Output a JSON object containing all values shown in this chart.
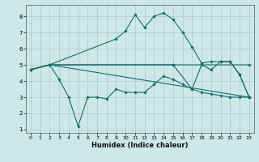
{
  "xlabel": "Humidex (Indice chaleur)",
  "bg_color": "#cce8e8",
  "grid_color": "#aaaaaa",
  "line_color": "#1a6b6b",
  "xlim": [
    -0.5,
    23.5
  ],
  "ylim": [
    0.8,
    8.7
  ],
  "xticks": [
    0,
    1,
    2,
    3,
    4,
    5,
    6,
    7,
    8,
    9,
    10,
    11,
    12,
    13,
    14,
    15,
    16,
    17,
    18,
    19,
    20,
    21,
    22,
    23
  ],
  "yticks": [
    1,
    2,
    3,
    4,
    5,
    6,
    7,
    8
  ],
  "lines": [
    {
      "x": [
        0,
        2,
        15,
        23
      ],
      "y": [
        4.7,
        5.0,
        5.0,
        5.0
      ]
    },
    {
      "x": [
        0,
        2,
        23
      ],
      "y": [
        4.7,
        5.0,
        3.0
      ]
    },
    {
      "x": [
        0,
        2,
        9,
        10,
        11,
        12,
        13,
        14,
        15,
        16,
        17,
        18,
        19,
        20,
        21,
        22,
        23
      ],
      "y": [
        4.7,
        5.0,
        6.6,
        7.1,
        8.1,
        7.3,
        8.0,
        8.2,
        7.8,
        7.0,
        6.1,
        5.1,
        5.2,
        5.2,
        5.2,
        4.4,
        3.0
      ]
    },
    {
      "x": [
        0,
        2,
        3,
        4,
        5,
        6,
        7,
        8,
        9,
        10,
        11,
        12,
        13,
        14,
        15,
        16,
        17,
        18,
        19,
        20,
        21,
        22,
        23
      ],
      "y": [
        4.7,
        5.0,
        4.1,
        3.0,
        1.2,
        3.0,
        3.0,
        2.9,
        3.5,
        3.3,
        3.3,
        3.3,
        3.8,
        4.3,
        4.1,
        3.8,
        3.5,
        3.3,
        3.2,
        3.1,
        3.0,
        3.0,
        3.0
      ]
    },
    {
      "x": [
        0,
        2,
        15,
        17,
        18,
        19,
        20,
        21,
        22,
        23
      ],
      "y": [
        4.7,
        5.0,
        5.0,
        3.5,
        5.0,
        4.7,
        5.2,
        5.2,
        4.4,
        3.0
      ]
    }
  ]
}
